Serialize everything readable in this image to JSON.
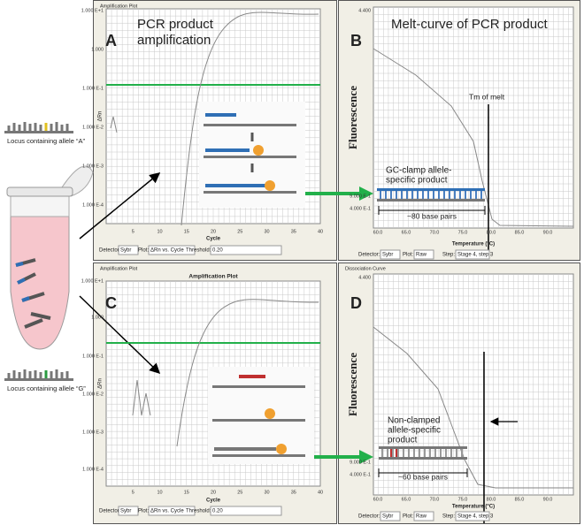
{
  "left": {
    "allele_a": "Locus containing allele “A”",
    "allele_g": "Locus containing allele “G”"
  },
  "panels": [
    {
      "letter": "A",
      "header": "Amplification Plot",
      "heading": [
        "PCR product",
        "amplification"
      ],
      "y_label": "ΔRn",
      "y_ticks": [
        "1.000 E+1",
        "1.000",
        "1.000 E-1",
        "1.000 E-2",
        "1.000 E-3",
        "1.000 E-4"
      ],
      "x_ticks": [
        "5",
        "10",
        "15",
        "20",
        "25",
        "30",
        "35",
        "40"
      ],
      "x_label": "Cycle",
      "controls": [
        "Detector:",
        "Sybr",
        "Plot:",
        "ΔRn vs. Cycle",
        "Threshold:",
        "0.20"
      ]
    },
    {
      "letter": "B",
      "heading": [
        "Melt-curve of PCR product"
      ],
      "y_label": "Fluorescence",
      "y_ticks": [
        "4.400",
        "9.000 E-1",
        "4.000 E-1"
      ],
      "x_ticks": [
        "60.0",
        "65.0",
        "70.0",
        "75.0",
        "80.0",
        "85.0",
        "90.0"
      ],
      "x_label": "Temperature (°C)",
      "controls": [
        "Detector:",
        "Sybr",
        "Plot:",
        "Raw",
        "Step:",
        "Stage 4, step 3"
      ],
      "annotations": {
        "tm": "Tm of melt",
        "product": [
          "GC-clamp allele-",
          "specific product"
        ],
        "size": "~80 base pairs"
      }
    },
    {
      "letter": "C",
      "header": "Amplification Plot",
      "title": "Amplification Plot",
      "y_label": "ΔRn",
      "y_ticks": [
        "1.000 E+1",
        "1.000",
        "1.000 E-1",
        "1.000 E-2",
        "1.000 E-3",
        "1.000 E-4"
      ],
      "x_ticks": [
        "5",
        "10",
        "15",
        "20",
        "25",
        "30",
        "35",
        "40"
      ],
      "x_label": "Cycle",
      "controls": [
        "Detector:",
        "Sybr",
        "Plot:",
        "ΔRn vs. Cycle",
        "Threshold:",
        "0.20"
      ]
    },
    {
      "letter": "D",
      "header": "Dissociation Curve",
      "y_label": "Fluorescence",
      "y_ticks": [
        "4.400",
        "9.000 E-1",
        "4.000 E-1"
      ],
      "x_ticks": [
        "60.0",
        "65.0",
        "70.0",
        "75.0",
        "80.0",
        "85.0",
        "90.0"
      ],
      "x_label": "Temperature (°C)",
      "controls": [
        "Detector:",
        "Sybr",
        "Plot:",
        "Raw",
        "Step:",
        "Stage 4, step 3"
      ],
      "annotations": {
        "product": [
          "Non-clamped",
          "allele-specific",
          "product"
        ],
        "size": "~60 base pairs"
      }
    }
  ]
}
